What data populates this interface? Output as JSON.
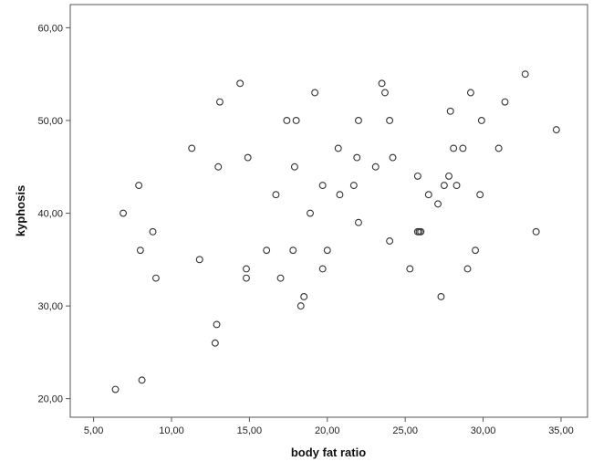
{
  "chart_data": {
    "type": "scatter",
    "title": "",
    "xlabel": "body fat ratio",
    "ylabel": "kyphosis",
    "xlim": [
      3.5,
      36.7
    ],
    "ylim": [
      18.0,
      62.5
    ],
    "x_ticks": [
      5,
      10,
      15,
      20,
      25,
      30,
      35
    ],
    "x_tick_labels": [
      "5,00",
      "10,00",
      "15,00",
      "20,00",
      "25,00",
      "30,00",
      "35,00"
    ],
    "y_ticks": [
      20,
      30,
      40,
      50,
      60
    ],
    "y_tick_labels": [
      "20,00",
      "30,00",
      "40,00",
      "50,00",
      "60,00"
    ],
    "grid": false,
    "legend": "none",
    "colors": {
      "plot_background": "#ffffff",
      "marker_stroke": "#333333",
      "frame": "#555555"
    },
    "series": [
      {
        "marker": "hollow-circle",
        "points": [
          {
            "x": 6.4,
            "y": 21
          },
          {
            "x": 8.1,
            "y": 22
          },
          {
            "x": 6.9,
            "y": 40
          },
          {
            "x": 7.9,
            "y": 43
          },
          {
            "x": 8.0,
            "y": 36
          },
          {
            "x": 8.8,
            "y": 38
          },
          {
            "x": 9.0,
            "y": 33
          },
          {
            "x": 11.3,
            "y": 47
          },
          {
            "x": 11.8,
            "y": 35
          },
          {
            "x": 12.8,
            "y": 26
          },
          {
            "x": 12.9,
            "y": 28
          },
          {
            "x": 13.0,
            "y": 45
          },
          {
            "x": 13.1,
            "y": 52
          },
          {
            "x": 14.4,
            "y": 54
          },
          {
            "x": 14.8,
            "y": 34
          },
          {
            "x": 14.8,
            "y": 33
          },
          {
            "x": 14.9,
            "y": 46
          },
          {
            "x": 16.1,
            "y": 36
          },
          {
            "x": 16.7,
            "y": 42
          },
          {
            "x": 17.0,
            "y": 33
          },
          {
            "x": 17.4,
            "y": 50
          },
          {
            "x": 17.8,
            "y": 36
          },
          {
            "x": 17.9,
            "y": 45
          },
          {
            "x": 18.0,
            "y": 50
          },
          {
            "x": 18.3,
            "y": 30
          },
          {
            "x": 18.5,
            "y": 31
          },
          {
            "x": 18.9,
            "y": 40
          },
          {
            "x": 19.2,
            "y": 53
          },
          {
            "x": 19.7,
            "y": 43
          },
          {
            "x": 19.7,
            "y": 34
          },
          {
            "x": 20.0,
            "y": 36
          },
          {
            "x": 20.7,
            "y": 47
          },
          {
            "x": 20.8,
            "y": 42
          },
          {
            "x": 21.7,
            "y": 43
          },
          {
            "x": 21.9,
            "y": 46
          },
          {
            "x": 22.0,
            "y": 50
          },
          {
            "x": 22.0,
            "y": 39
          },
          {
            "x": 23.1,
            "y": 45
          },
          {
            "x": 23.5,
            "y": 54
          },
          {
            "x": 23.7,
            "y": 53
          },
          {
            "x": 24.0,
            "y": 50
          },
          {
            "x": 24.0,
            "y": 37
          },
          {
            "x": 24.2,
            "y": 46
          },
          {
            "x": 25.3,
            "y": 34
          },
          {
            "x": 25.8,
            "y": 44
          },
          {
            "x": 25.8,
            "y": 38
          },
          {
            "x": 25.9,
            "y": 38
          },
          {
            "x": 26.0,
            "y": 38
          },
          {
            "x": 26.5,
            "y": 42
          },
          {
            "x": 27.1,
            "y": 41
          },
          {
            "x": 27.3,
            "y": 31
          },
          {
            "x": 27.5,
            "y": 43
          },
          {
            "x": 27.8,
            "y": 44
          },
          {
            "x": 27.9,
            "y": 51
          },
          {
            "x": 28.1,
            "y": 47
          },
          {
            "x": 28.3,
            "y": 43
          },
          {
            "x": 28.7,
            "y": 47
          },
          {
            "x": 29.0,
            "y": 34
          },
          {
            "x": 29.2,
            "y": 53
          },
          {
            "x": 29.5,
            "y": 36
          },
          {
            "x": 29.8,
            "y": 42
          },
          {
            "x": 29.9,
            "y": 50
          },
          {
            "x": 31.0,
            "y": 47
          },
          {
            "x": 31.4,
            "y": 52
          },
          {
            "x": 32.7,
            "y": 55
          },
          {
            "x": 33.4,
            "y": 38
          },
          {
            "x": 34.7,
            "y": 49
          }
        ]
      }
    ]
  }
}
